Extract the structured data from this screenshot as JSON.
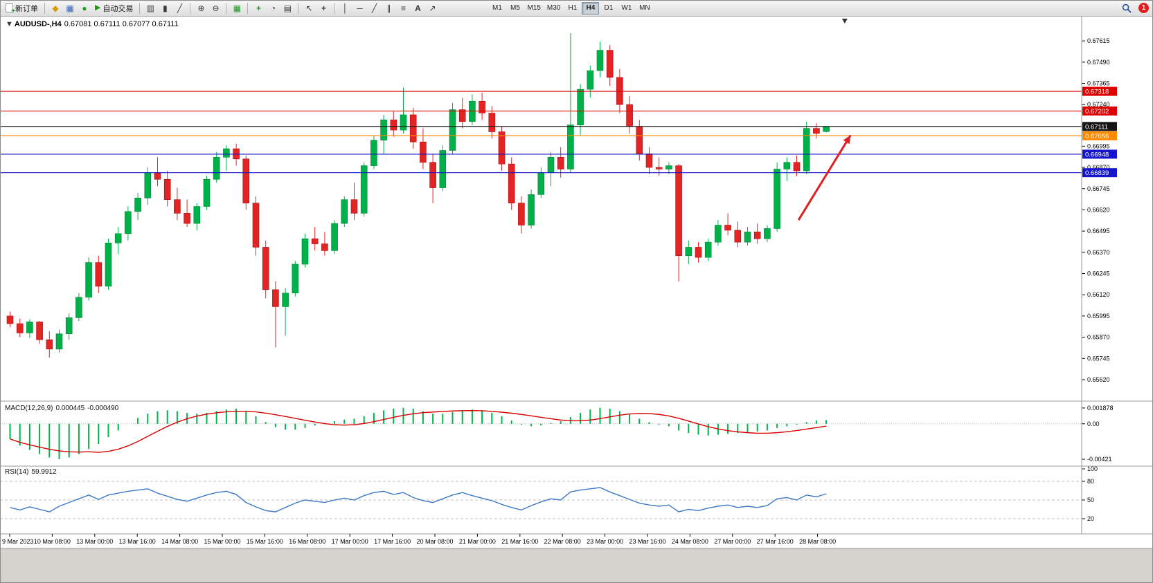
{
  "toolbar": {
    "new_order_label": "新订单",
    "autotrading_label": "自动交易",
    "timeframes": [
      "M1",
      "M5",
      "M15",
      "M30",
      "H1",
      "H4",
      "D1",
      "W1",
      "MN"
    ],
    "active_timeframe": "H4",
    "notification_count": "1",
    "icons": {
      "new_order_plus": "+",
      "metaeditor": "◆",
      "charts_window": "▦",
      "support": "●",
      "autotrading_play": "▶",
      "bar_chart": "▥",
      "candle_chart": "▮",
      "line_chart": "╱",
      "zoom_in": "⊕",
      "zoom_out": "⊖",
      "tile_windows": "▦",
      "indicators_plus": "+",
      "clock": "◔",
      "templates": "▤",
      "cursor": "↖",
      "crosshair": "+",
      "vline": "│",
      "hline": "─",
      "trendline": "╱",
      "channel": "∥",
      "fibonacci": "≡",
      "text_tool": "A",
      "arrows_tool": "↗",
      "chart_menu": "▼"
    }
  },
  "chart": {
    "type": "candlestick",
    "symbol_tf": "AUDUSD-,H4",
    "ohlc_text": "0.67081 0.67111 0.67077 0.67111",
    "current_price": "0.67111",
    "price_range": [
      0.6551,
      0.6775
    ],
    "price_axis_labels": [
      "0.67615",
      "0.67490",
      "0.67365",
      "0.67240",
      "0.67120",
      "0.66995",
      "0.66870",
      "0.66745",
      "0.66620",
      "0.66495",
      "0.66370",
      "0.66245",
      "0.66120",
      "0.65995",
      "0.65870",
      "0.65745",
      "0.65620"
    ],
    "hlines": [
      {
        "value": 0.67318,
        "label": "0.67318",
        "color": "#dd0000",
        "name": "resistance-line-upper"
      },
      {
        "value": 0.67202,
        "label": "0.67202",
        "color": "#dd0000",
        "name": "resistance-line-lower"
      },
      {
        "value": 0.67111,
        "label": "0.67111",
        "color": "#151515",
        "name": "current-price-line"
      },
      {
        "value": 0.67056,
        "label": "0.67056",
        "color": "#ff8a00",
        "name": "pivot-line"
      },
      {
        "value": 0.66948,
        "label": "0.66948",
        "color": "#1515cc",
        "name": "support-line-upper"
      },
      {
        "value": 0.66839,
        "label": "0.66839",
        "color": "#1515cc",
        "name": "support-line-lower"
      }
    ],
    "colors": {
      "up": "#00b14a",
      "up_stroke": "#008437",
      "down": "#e32424",
      "down_stroke": "#a80f0f"
    },
    "annotation_arrow": {
      "from_bar": 80.5,
      "from_price": 0.6656,
      "to_bar": 85.8,
      "to_price": 0.6706,
      "color": "#e01f1f"
    },
    "shift_marker_bar": 85.2,
    "candles": [
      [
        0.65995,
        0.6602,
        0.6593,
        0.6595
      ],
      [
        0.6595,
        0.6598,
        0.6587,
        0.65895
      ],
      [
        0.65895,
        0.65975,
        0.65865,
        0.6596
      ],
      [
        0.6596,
        0.65965,
        0.6583,
        0.65855
      ],
      [
        0.65855,
        0.65905,
        0.6575,
        0.658
      ],
      [
        0.658,
        0.65915,
        0.6578,
        0.6589
      ],
      [
        0.6589,
        0.6601,
        0.65855,
        0.65985
      ],
      [
        0.65985,
        0.6613,
        0.65965,
        0.66105
      ],
      [
        0.66105,
        0.6634,
        0.66085,
        0.6631
      ],
      [
        0.6631,
        0.6635,
        0.6613,
        0.6617
      ],
      [
        0.6617,
        0.6645,
        0.6615,
        0.66425
      ],
      [
        0.66425,
        0.6652,
        0.6636,
        0.6648
      ],
      [
        0.6648,
        0.6664,
        0.6644,
        0.6661
      ],
      [
        0.6661,
        0.6672,
        0.6656,
        0.6669
      ],
      [
        0.6669,
        0.6687,
        0.6665,
        0.6684
      ],
      [
        0.6684,
        0.6693,
        0.6676,
        0.668
      ],
      [
        0.668,
        0.6685,
        0.6664,
        0.6668
      ],
      [
        0.6668,
        0.6675,
        0.6656,
        0.666
      ],
      [
        0.666,
        0.6668,
        0.6652,
        0.6654
      ],
      [
        0.6654,
        0.6666,
        0.665,
        0.6664
      ],
      [
        0.6664,
        0.6682,
        0.6662,
        0.668
      ],
      [
        0.668,
        0.6696,
        0.6678,
        0.6693
      ],
      [
        0.6693,
        0.67,
        0.6685,
        0.6698
      ],
      [
        0.6698,
        0.6701,
        0.6688,
        0.6692
      ],
      [
        0.6692,
        0.6694,
        0.6662,
        0.6666
      ],
      [
        0.6666,
        0.667,
        0.6635,
        0.664
      ],
      [
        0.664,
        0.6644,
        0.661,
        0.6615
      ],
      [
        0.6615,
        0.662,
        0.6581,
        0.6605
      ],
      [
        0.6605,
        0.6616,
        0.6588,
        0.6613
      ],
      [
        0.6613,
        0.6632,
        0.6611,
        0.663
      ],
      [
        0.663,
        0.6648,
        0.6628,
        0.6645
      ],
      [
        0.6645,
        0.6652,
        0.6638,
        0.6642
      ],
      [
        0.6642,
        0.6649,
        0.6635,
        0.6638
      ],
      [
        0.6638,
        0.6656,
        0.6636,
        0.6654
      ],
      [
        0.6654,
        0.667,
        0.6652,
        0.6668
      ],
      [
        0.6668,
        0.6678,
        0.6656,
        0.666
      ],
      [
        0.666,
        0.669,
        0.6658,
        0.6688
      ],
      [
        0.6688,
        0.6706,
        0.6686,
        0.6703
      ],
      [
        0.6703,
        0.6718,
        0.6695,
        0.6715
      ],
      [
        0.6715,
        0.672,
        0.6705,
        0.6709
      ],
      [
        0.6709,
        0.6734,
        0.6707,
        0.6718
      ],
      [
        0.6718,
        0.6722,
        0.6698,
        0.6702
      ],
      [
        0.6702,
        0.671,
        0.6686,
        0.669
      ],
      [
        0.669,
        0.6695,
        0.6666,
        0.6675
      ],
      [
        0.6675,
        0.67,
        0.6673,
        0.6697
      ],
      [
        0.6697,
        0.6725,
        0.6695,
        0.6721
      ],
      [
        0.6721,
        0.6728,
        0.671,
        0.6714
      ],
      [
        0.6714,
        0.673,
        0.6712,
        0.6726
      ],
      [
        0.6726,
        0.6731,
        0.6715,
        0.6719
      ],
      [
        0.6719,
        0.6723,
        0.6704,
        0.6708
      ],
      [
        0.6708,
        0.6711,
        0.6685,
        0.6689
      ],
      [
        0.6689,
        0.6693,
        0.6662,
        0.6666
      ],
      [
        0.6666,
        0.667,
        0.6648,
        0.6653
      ],
      [
        0.6653,
        0.6674,
        0.6651,
        0.6671
      ],
      [
        0.6671,
        0.6687,
        0.6669,
        0.6684
      ],
      [
        0.6684,
        0.6696,
        0.6676,
        0.6693
      ],
      [
        0.6693,
        0.6699,
        0.6681,
        0.6686
      ],
      [
        0.6686,
        0.6766,
        0.6684,
        0.6712
      ],
      [
        0.6712,
        0.6736,
        0.6706,
        0.6733
      ],
      [
        0.6733,
        0.6747,
        0.6728,
        0.6744
      ],
      [
        0.6744,
        0.6761,
        0.674,
        0.6756
      ],
      [
        0.6756,
        0.6759,
        0.6735,
        0.674
      ],
      [
        0.674,
        0.6745,
        0.6719,
        0.6724
      ],
      [
        0.6724,
        0.6729,
        0.6707,
        0.6711
      ],
      [
        0.6711,
        0.6715,
        0.6691,
        0.6695
      ],
      [
        0.6695,
        0.6699,
        0.6683,
        0.6687
      ],
      [
        0.6687,
        0.6693,
        0.6682,
        0.6686
      ],
      [
        0.6686,
        0.669,
        0.6683,
        0.6688
      ],
      [
        0.6688,
        0.6689,
        0.662,
        0.6635
      ],
      [
        0.6635,
        0.6644,
        0.663,
        0.664
      ],
      [
        0.664,
        0.6643,
        0.6631,
        0.6634
      ],
      [
        0.6634,
        0.6645,
        0.6632,
        0.6643
      ],
      [
        0.6643,
        0.6656,
        0.6641,
        0.6653
      ],
      [
        0.6653,
        0.666,
        0.6647,
        0.665
      ],
      [
        0.665,
        0.6655,
        0.664,
        0.6643
      ],
      [
        0.6643,
        0.6652,
        0.6641,
        0.6649
      ],
      [
        0.6649,
        0.6654,
        0.6642,
        0.6645
      ],
      [
        0.6645,
        0.6653,
        0.6643,
        0.6651
      ],
      [
        0.6651,
        0.669,
        0.6649,
        0.6686
      ],
      [
        0.6686,
        0.6693,
        0.6679,
        0.669
      ],
      [
        0.669,
        0.6694,
        0.6682,
        0.6685
      ],
      [
        0.6685,
        0.6714,
        0.6683,
        0.671
      ],
      [
        0.671,
        0.6713,
        0.6704,
        0.6707
      ],
      [
        0.67081,
        0.67111,
        0.67077,
        0.67111
      ]
    ]
  },
  "macd": {
    "title": "MACD(12,26,9)",
    "main_value": "0.000445",
    "signal_value": "-0.000490",
    "axis": [
      "0.001878",
      "0.00",
      "-0.00421"
    ],
    "range": [
      0.0022,
      -0.0047
    ],
    "colors": {
      "histogram": "#00b44c",
      "signal": "#d80000"
    },
    "histogram": [
      -0.0018,
      -0.0026,
      -0.0031,
      -0.0036,
      -0.004,
      -0.0042,
      -0.004,
      -0.0036,
      -0.003,
      -0.0024,
      -0.0016,
      -0.0008,
      0.0,
      0.0007,
      0.0012,
      0.0015,
      0.0016,
      0.0015,
      0.0013,
      0.0012,
      0.0013,
      0.0015,
      0.0017,
      0.0018,
      0.0015,
      0.0009,
      0.0002,
      -0.0004,
      -0.0007,
      -0.0007,
      -0.0005,
      -0.0002,
      0.0001,
      0.0003,
      0.0005,
      0.0006,
      0.0009,
      0.0013,
      0.0016,
      0.0018,
      0.0019,
      0.0018,
      0.0015,
      0.0012,
      0.0012,
      0.0014,
      0.0016,
      0.0017,
      0.0016,
      0.0013,
      0.0009,
      0.0004,
      -0.0001,
      -0.0003,
      -0.0002,
      0.0001,
      0.0003,
      0.0008,
      0.0013,
      0.0017,
      0.0019,
      0.0018,
      0.0015,
      0.0011,
      0.0006,
      0.0002,
      -0.0001,
      -0.0003,
      -0.0008,
      -0.0011,
      -0.0013,
      -0.0014,
      -0.0013,
      -0.0012,
      -0.0011,
      -0.001,
      -0.0009,
      -0.0008,
      -0.0005,
      -0.0003,
      -0.0001,
      0.0002,
      0.0004,
      0.000445
    ]
  },
  "rsi": {
    "title": "RSI(14)",
    "value": "59.9912",
    "axis": [
      "100",
      "80",
      "50",
      "20"
    ],
    "levels": [
      80,
      50,
      20
    ],
    "colors": {
      "line": "#3c78c8"
    },
    "values": [
      38,
      34,
      39,
      35,
      31,
      40,
      46,
      52,
      58,
      51,
      58,
      61,
      64,
      66,
      68,
      61,
      56,
      51,
      48,
      53,
      58,
      62,
      64,
      59,
      46,
      39,
      33,
      31,
      38,
      45,
      50,
      48,
      46,
      50,
      53,
      50,
      57,
      62,
      64,
      59,
      62,
      54,
      49,
      46,
      52,
      58,
      62,
      57,
      53,
      49,
      43,
      38,
      34,
      41,
      47,
      52,
      50,
      63,
      66,
      68,
      70,
      63,
      57,
      51,
      45,
      42,
      40,
      42,
      31,
      35,
      33,
      37,
      40,
      42,
      38,
      40,
      38,
      41,
      52,
      54,
      50,
      58,
      55,
      60
    ]
  },
  "time_axis": {
    "labels": [
      "9 Mar 2023",
      "10 Mar 08:00",
      "13 Mar 00:00",
      "13 Mar 16:00",
      "14 Mar 08:00",
      "15 Mar 00:00",
      "15 Mar 16:00",
      "16 Mar 08:00",
      "17 Mar 00:00",
      "17 Mar 16:00",
      "20 Mar 08:00",
      "21 Mar 00:00",
      "21 Mar 16:00",
      "22 Mar 08:00",
      "23 Mar 00:00",
      "23 Mar 16:00",
      "24 Mar 08:00",
      "27 Mar 00:00",
      "27 Mar 16:00",
      "28 Mar 08:00"
    ]
  }
}
